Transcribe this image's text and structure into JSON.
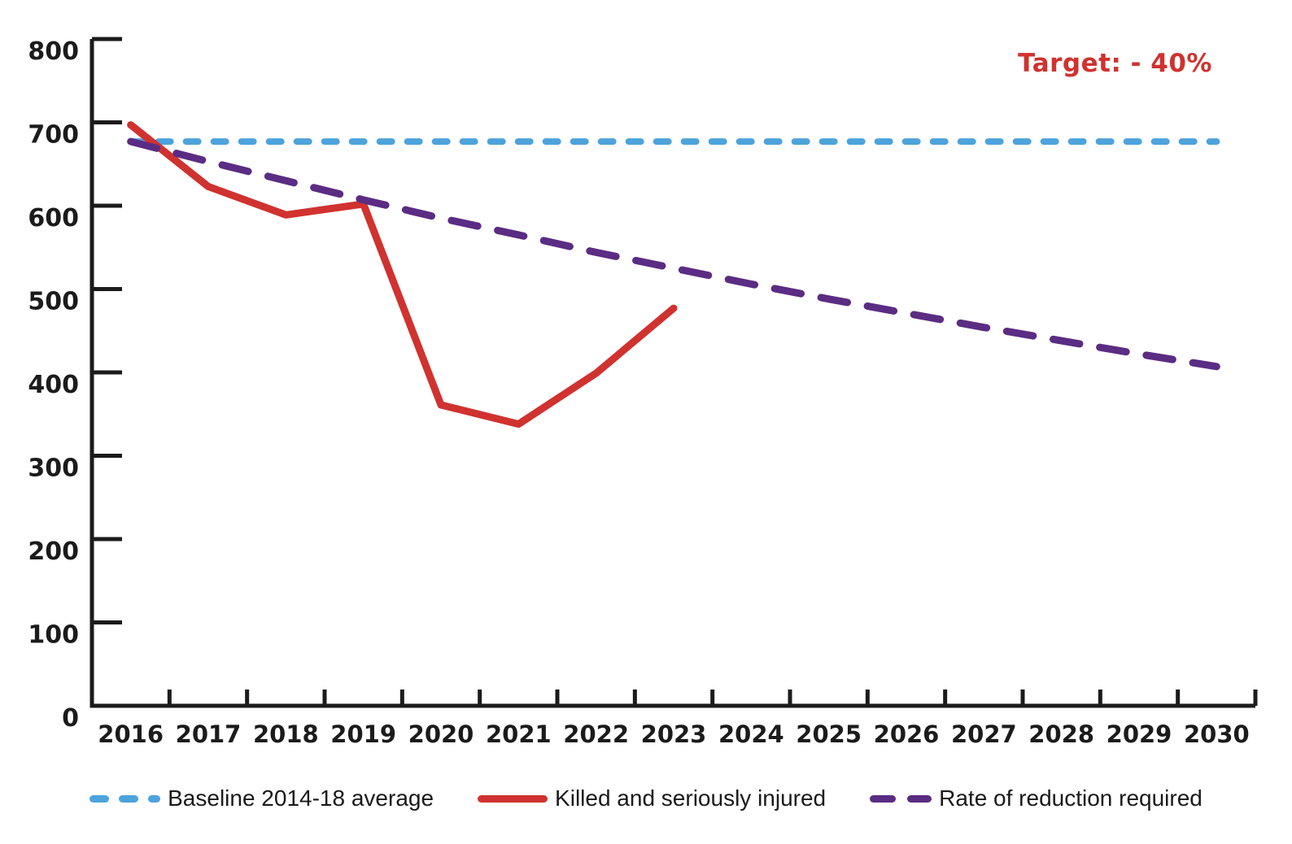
{
  "colors": {
    "background": "#FFFFFF",
    "axis": "#1B1B1B",
    "tick_text": "#1B1B1B",
    "legend_text": "#1A1A1A"
  },
  "chart_data": {
    "type": "line",
    "title": "",
    "xlabel": "",
    "ylabel": "",
    "categories": [
      "2016",
      "2017",
      "2018",
      "2019",
      "2020",
      "2021",
      "2022",
      "2023",
      "2024",
      "2025",
      "2026",
      "2027",
      "2028",
      "2029",
      "2030"
    ],
    "ylim": [
      0,
      800
    ],
    "yticks": [
      0,
      100,
      200,
      300,
      400,
      500,
      600,
      700,
      800
    ],
    "grid": false,
    "legend_position": "bottom",
    "annotation": {
      "text": "Target: - 40%",
      "position": "top-right",
      "color": "#D0322F"
    },
    "series": [
      {
        "name": "Baseline 2014-18 average",
        "style": "dashed",
        "color": "#4DA3DB",
        "values": [
          677,
          677,
          677,
          677,
          677,
          677,
          677,
          677,
          677,
          677,
          677,
          677,
          677,
          677,
          677
        ]
      },
      {
        "name": "Killed and seriously injured",
        "style": "solid",
        "color": "#D0322F",
        "values": [
          697,
          623,
          589,
          602,
          361,
          338,
          399,
          477,
          null,
          null,
          null,
          null,
          null,
          null,
          null
        ]
      },
      {
        "name": "Rate of reduction required",
        "style": "dashed",
        "color": "#5B2C83",
        "values": [
          677,
          653,
          630,
          607,
          585,
          565,
          544,
          525,
          506,
          488,
          471,
          454,
          438,
          422,
          407
        ]
      }
    ]
  }
}
